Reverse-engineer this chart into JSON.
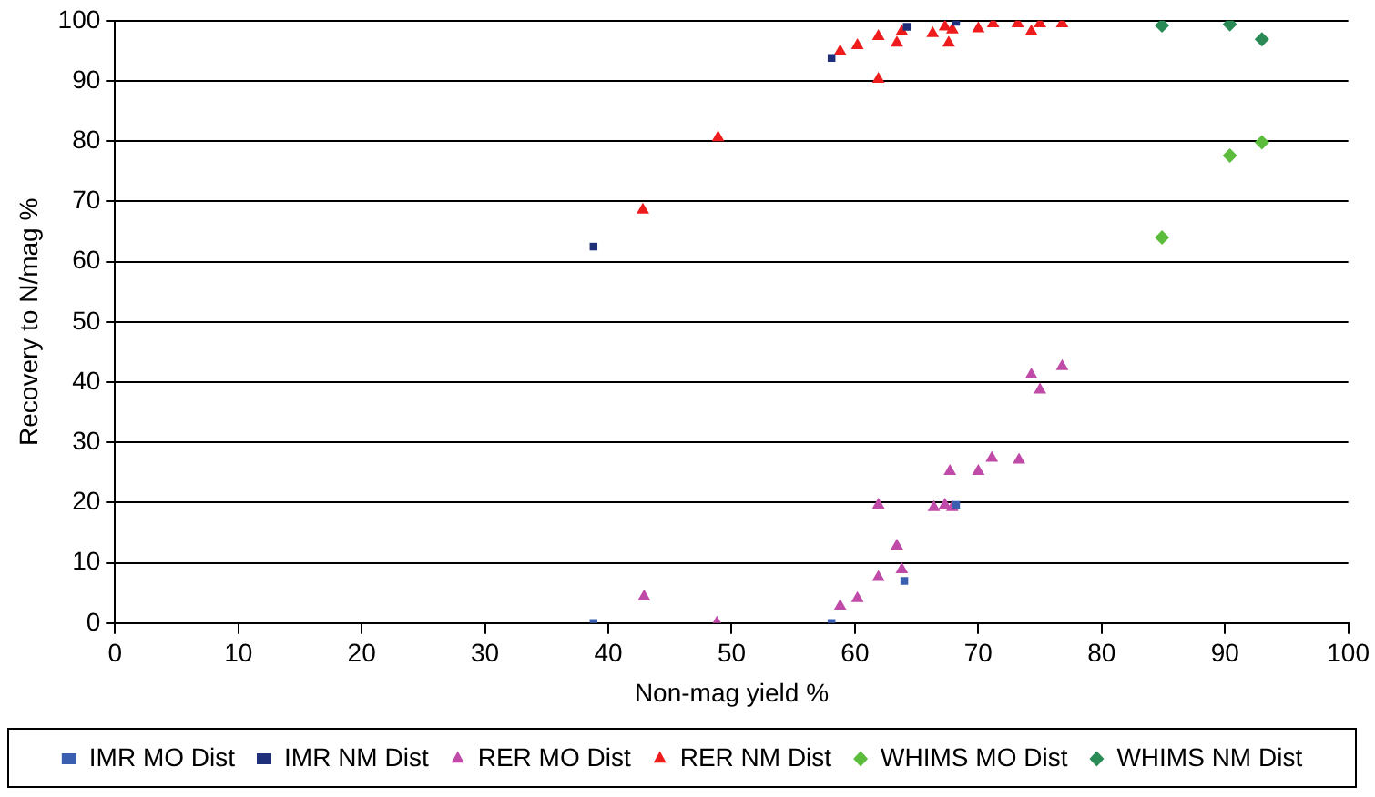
{
  "chart_data": {
    "type": "scatter",
    "xlabel": "Non-mag yield %",
    "ylabel": "Recovery to N/mag %",
    "xlim": [
      0,
      100
    ],
    "xticks": [
      0,
      10,
      20,
      30,
      40,
      50,
      60,
      70,
      80,
      90,
      100
    ],
    "ylim": [
      0,
      100
    ],
    "yticks": [
      0,
      10,
      20,
      30,
      40,
      50,
      60,
      70,
      80,
      90,
      100
    ],
    "grid": "y",
    "legend": "bottom",
    "series": [
      {
        "name": "IMR MO Dist",
        "color": "#3a5fb0",
        "marker": "square",
        "x": [
          38.8,
          58.1,
          64.0,
          68.2
        ],
        "values": [
          0,
          0,
          7.0,
          19.6
        ]
      },
      {
        "name": "IMR NM Dist",
        "color": "#1f2f7a",
        "marker": "square",
        "x": [
          38.8,
          58.1,
          64.2,
          68.2
        ],
        "values": [
          62.5,
          93.8,
          99.0,
          99.8
        ]
      },
      {
        "name": "RER MO Dist",
        "color": "#c04aa8",
        "marker": "triangle",
        "x": [
          42.9,
          48.8,
          58.8,
          60.2,
          61.9,
          61.9,
          63.4,
          63.8,
          66.4,
          67.3,
          67.9,
          67.7,
          70.0,
          71.1,
          73.3,
          74.3,
          75.0,
          76.8
        ],
        "values": [
          4.4,
          0,
          2.8,
          4.1,
          7.6,
          19.6,
          12.8,
          8.9,
          19.2,
          19.6,
          19.2,
          25.2,
          25.2,
          27.4,
          27.1,
          41.2,
          38.7,
          42.6
        ]
      },
      {
        "name": "RER NM Dist",
        "color": "#ee1c1c",
        "marker": "triangle",
        "x": [
          42.8,
          48.9,
          61.9,
          58.8,
          60.2,
          61.9,
          63.4,
          63.8,
          66.3,
          67.3,
          67.9,
          67.6,
          70.0,
          71.2,
          73.2,
          74.3,
          75.0,
          76.8
        ],
        "values": [
          68.6,
          80.6,
          90.3,
          94.9,
          95.9,
          97.4,
          96.3,
          98.2,
          97.9,
          99.0,
          98.5,
          96.3,
          98.7,
          99.5,
          99.5,
          98.2,
          99.5,
          99.5
        ]
      },
      {
        "name": "WHIMS MO Dist",
        "color": "#5cbd3c",
        "marker": "diamond",
        "x": [
          84.9,
          90.4,
          93.0
        ],
        "values": [
          64.0,
          77.6,
          79.8
        ]
      },
      {
        "name": "WHIMS NM Dist",
        "color": "#2a8a55",
        "marker": "diamond",
        "x": [
          84.9,
          90.4,
          93.0
        ],
        "values": [
          99.2,
          99.4,
          96.9
        ]
      }
    ]
  }
}
